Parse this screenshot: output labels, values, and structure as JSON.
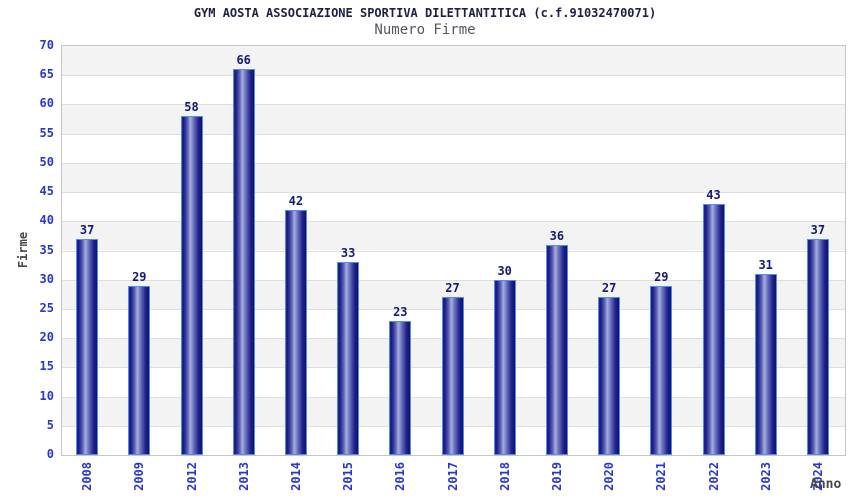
{
  "chart_data": {
    "type": "bar",
    "title": "GYM AOSTA ASSOCIAZIONE SPORTIVA DILETTANTITICA (c.f.91032470071)",
    "subtitle": "Numero Firme",
    "xlabel": "Anno",
    "ylabel": "Firme",
    "categories": [
      "2008",
      "2009",
      "2012",
      "2013",
      "2014",
      "2015",
      "2016",
      "2017",
      "2018",
      "2019",
      "2020",
      "2021",
      "2022",
      "2023",
      "2024"
    ],
    "values": [
      37,
      29,
      58,
      66,
      42,
      33,
      23,
      27,
      30,
      36,
      27,
      29,
      43,
      31,
      37
    ],
    "ylim": [
      0,
      70
    ],
    "ytick_step": 5,
    "grid": "horizontal-alternating-bands",
    "legend": null,
    "value_labels_shown": true,
    "colors": {
      "bar_dark": "#1b1b86",
      "bar_highlight": "#a8aede",
      "bar_border": "#4f8df0",
      "tick_label": "#2936cf",
      "value_label": "#141a7a",
      "axis_title": "#44474c",
      "title": "#1f1f46",
      "subtitle": "#54575c",
      "band_gray": "#f3f3f3",
      "band_white": "#ffffff",
      "grid_line": "#dedede",
      "plot_border": "#c6c6c6"
    }
  }
}
